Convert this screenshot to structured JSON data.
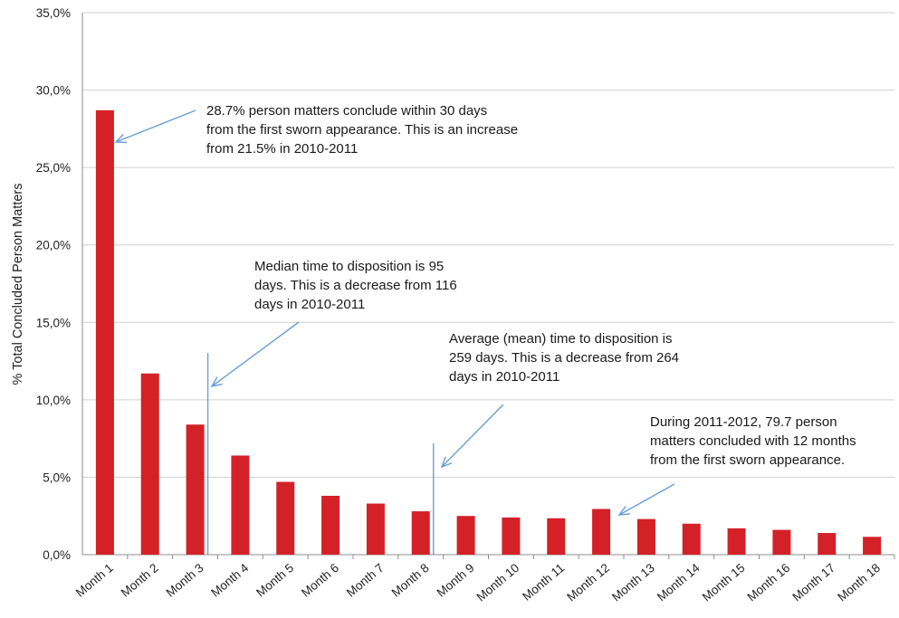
{
  "chart_data": {
    "type": "bar",
    "ylabel": "% Total Concluded Person Matters",
    "xlabel": "",
    "title": "",
    "ylim": [
      0,
      35
    ],
    "yticks": [
      "0,0%",
      "5,0%",
      "10,0%",
      "15,0%",
      "20,0%",
      "25,0%",
      "30,0%",
      "35,0%"
    ],
    "grid": true,
    "bar_color": "#d42027",
    "categories": [
      "Month 1",
      "Month 2",
      "Month 3",
      "Month 4",
      "Month 5",
      "Month 6",
      "Month 7",
      "Month 8",
      "Month 9",
      "Month 10",
      "Month 11",
      "Month 12",
      "Month 13",
      "Month 14",
      "Month 15",
      "Month 16",
      "Month 17",
      "Month 18"
    ],
    "values": [
      28.7,
      11.7,
      8.4,
      6.4,
      4.7,
      3.8,
      3.3,
      2.8,
      2.5,
      2.4,
      2.35,
      2.95,
      2.3,
      2.0,
      1.7,
      1.6,
      1.4,
      1.15
    ],
    "markers": [
      {
        "after_category": "Month 3",
        "label": "median"
      },
      {
        "after_category": "Month 8",
        "label": "mean"
      }
    ],
    "annotations": [
      "28.7% person matters conclude within 30 days\nfrom the first sworn appearance. This is an increase\nfrom 21.5% in 2010-2011",
      "Median time to disposition is  95\ndays. This is a decrease from 116\ndays in  2010-2011",
      "Average (mean) time to disposition is\n259  days. This is a decrease from 264\ndays in  2010-2011",
      "During 2011-2012, 79.7 person\nmatters concluded with 12 months\nfrom the first sworn appearance."
    ]
  }
}
